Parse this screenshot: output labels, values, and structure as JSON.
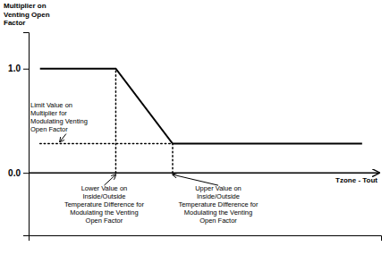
{
  "chart_data": {
    "type": "line",
    "xlabel": "Tzone - Tout",
    "ylabel": "Multiplier on\nVenting Open\nFactor",
    "xlim": [
      -0.8,
      8.5
    ],
    "ylim": [
      -0.6,
      1.35
    ],
    "yticks": [
      {
        "value": 0.0,
        "label": "0.0"
      },
      {
        "value": 1.0,
        "label": "1.0"
      }
    ],
    "tick_labels": "y",
    "series": [
      {
        "x": [
          -0.5,
          1.5,
          3.0,
          5.5,
          8.0
        ],
        "values": [
          1.0,
          1.0,
          0.28,
          0.28,
          0.28
        ],
        "color": "#000000",
        "line_style": "solid"
      },
      {
        "x": [
          1.5,
          1.5
        ],
        "values": [
          0.0,
          1.0
        ],
        "color": "#000000",
        "line_style": "dotted"
      },
      {
        "x": [
          3.0,
          3.0
        ],
        "values": [
          0.0,
          0.28
        ],
        "color": "#000000",
        "line_style": "dotted"
      },
      {
        "x": [
          -0.5,
          3.0
        ],
        "values": [
          0.28,
          0.28
        ],
        "color": "#000000",
        "line_style": "dotted"
      }
    ],
    "annotations": [
      {
        "text": "Limit Value on\nMultiplier for\nModulating Venting\nOpen Factor",
        "x": 0.0,
        "y": 0.28
      },
      {
        "text": "Lower Value on\nInside/Outside\nTemperature Difference for\nModulating the Venting\nOpen Factor",
        "x": 1.5,
        "y": 0.0
      },
      {
        "text": "Upper Value on\nInside/Outside\nTemperature Difference for\nModulating the Venting\nOpen Factor",
        "x": 3.0,
        "y": 0.0
      }
    ]
  }
}
